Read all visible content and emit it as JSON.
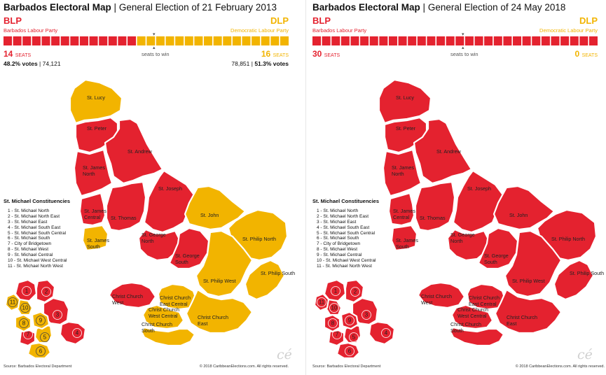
{
  "colors": {
    "blp": "#e4222f",
    "dlp": "#f2b400",
    "border": "#ffffff",
    "marker": "#777777"
  },
  "panels": [
    {
      "id": "2013",
      "title_bold": "Barbados Electoral Map",
      "title_rest": "General Election of 21 February 2013",
      "blp_abbr": "BLP",
      "blp_name": "Barbados Labour Party",
      "dlp_abbr": "DLP",
      "dlp_name": "Democratic Labour Party",
      "blp_seats": 14,
      "dlp_seats": 16,
      "total_seats": 30,
      "blp_seats_text": "14",
      "dlp_seats_text": "16",
      "seats_suffix": "SEATS",
      "seats_to_win": "seats to win",
      "blp_votes_pct": "48.2% votes",
      "blp_votes_count": "74,121",
      "dlp_votes_count": "78,851",
      "dlp_votes_pct": "51.3% votes",
      "show_votes": true,
      "winners": {
        "lucy": "dlp",
        "peter": "blp",
        "andrew": "blp",
        "jamesN": "blp",
        "jamesC": "blp",
        "jamesS": "dlp",
        "thomas": "blp",
        "joseph": "blp",
        "john": "dlp",
        "philipN": "dlp",
        "georgeN": "blp",
        "georgeS": "blp",
        "philipW": "dlp",
        "philipS": "dlp",
        "ccWest": "blp",
        "ccWC": "dlp",
        "ccEC": "dlp",
        "ccSouth": "dlp",
        "ccEast": "dlp",
        "sm1": "blp",
        "sm2": "blp",
        "sm3": "blp",
        "sm4": "blp",
        "sm5": "dlp",
        "sm6": "dlp",
        "sm7": "blp",
        "sm8": "dlp",
        "sm9": "dlp",
        "sm10": "dlp",
        "sm11": "dlp"
      },
      "source": "Source: Barbados Electoral Department",
      "copyright": "© 2018 CaribbeanElections.com.  All rights reserved.",
      "logo": "cé"
    },
    {
      "id": "2018",
      "title_bold": "Barbados Electoral Map",
      "title_rest": "General Election of 24 May 2018",
      "blp_abbr": "BLP",
      "blp_name": "Barbados Labour Party",
      "dlp_abbr": "DLP",
      "dlp_name": "Democratic Labour Party",
      "blp_seats": 30,
      "dlp_seats": 0,
      "total_seats": 30,
      "blp_seats_text": "30",
      "dlp_seats_text": "0",
      "seats_suffix": "SEATS",
      "seats_to_win": "seats to win",
      "show_votes": false,
      "winners": {
        "lucy": "blp",
        "peter": "blp",
        "andrew": "blp",
        "jamesN": "blp",
        "jamesC": "blp",
        "jamesS": "blp",
        "thomas": "blp",
        "joseph": "blp",
        "john": "blp",
        "philipN": "blp",
        "georgeN": "blp",
        "georgeS": "blp",
        "philipW": "blp",
        "philipS": "blp",
        "ccWest": "blp",
        "ccWC": "blp",
        "ccEC": "blp",
        "ccSouth": "blp",
        "ccEast": "blp",
        "sm1": "blp",
        "sm2": "blp",
        "sm3": "blp",
        "sm4": "blp",
        "sm5": "blp",
        "sm6": "blp",
        "sm7": "blp",
        "sm8": "blp",
        "sm9": "blp",
        "sm10": "blp",
        "sm11": "blp"
      },
      "source": "Source: Barbados Electoral Department",
      "copyright": "© 2018 CaribbeanElections.com.  All rights reserved.",
      "logo": "cé"
    }
  ],
  "labels": {
    "lucy": "St. Lucy",
    "peter": "St. Peter",
    "andrew": "St. Andrew",
    "jamesN1": "St. James",
    "jamesN2": "North",
    "jamesC1": "St. James",
    "jamesC2": "Central",
    "jamesS1": "St. James",
    "jamesS2": "South",
    "thomas": "St. Thomas",
    "joseph": "St. Joseph",
    "john": "St. John",
    "philipN": "St. Philip North",
    "georgeN1": "St. George",
    "georgeN2": "North",
    "georgeS1": "St. George",
    "georgeS2": "South",
    "philipW": "St. Philip West",
    "philipS": "St. Philip South",
    "ccWest1": "Christ Church",
    "ccWest2": "West",
    "ccEC1": "Christ Church",
    "ccEC2": "East Central",
    "ccWC1": "Christ Church",
    "ccWC2": "West Central",
    "ccSouth1": "Christ Church",
    "ccSouth2": "South",
    "ccEast1": "Christ Church",
    "ccEast2": "East"
  },
  "legend": {
    "title": "St. Michael Constituencies",
    "items": [
      "1 - St. Michael North",
      "2 - St. Michael North East",
      "3 - St. Michael East",
      "4 - St. Michael South East",
      "5 - St. Michael South Central",
      "6 - St. Michael South",
      "7 - City of Bridgetown",
      "8 - St. Michael West",
      "9 - St. Michael Central",
      "10 - St. Michael West Central",
      "11 - St. Michael North West"
    ],
    "numbers": [
      "1",
      "2",
      "3",
      "4",
      "5",
      "6",
      "7",
      "8",
      "9",
      "10",
      "11"
    ]
  }
}
